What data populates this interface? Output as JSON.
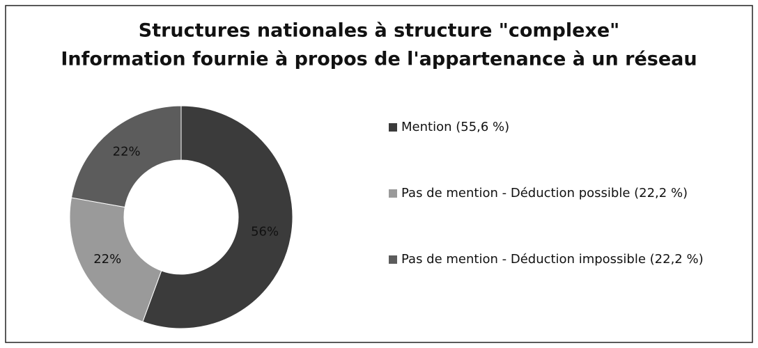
{
  "chart_data": {
    "type": "donut",
    "title": [
      "Structures nationales à structure \"complexe\"",
      "Information fournie à propos de l'appartenance à un réseau"
    ],
    "categories": [
      "Mention (55,6 %)",
      "Pas de mention - Déduction possible (22,2 %)",
      "Pas de mention - Déduction impossible (22,2 %)"
    ],
    "values": [
      55.6,
      22.2,
      22.2
    ],
    "value_labels": [
      "56%",
      "22%",
      "22%"
    ],
    "colors": [
      "#3b3b3b",
      "#9a9a9a",
      "#5c5c5c"
    ],
    "legend": "right"
  }
}
